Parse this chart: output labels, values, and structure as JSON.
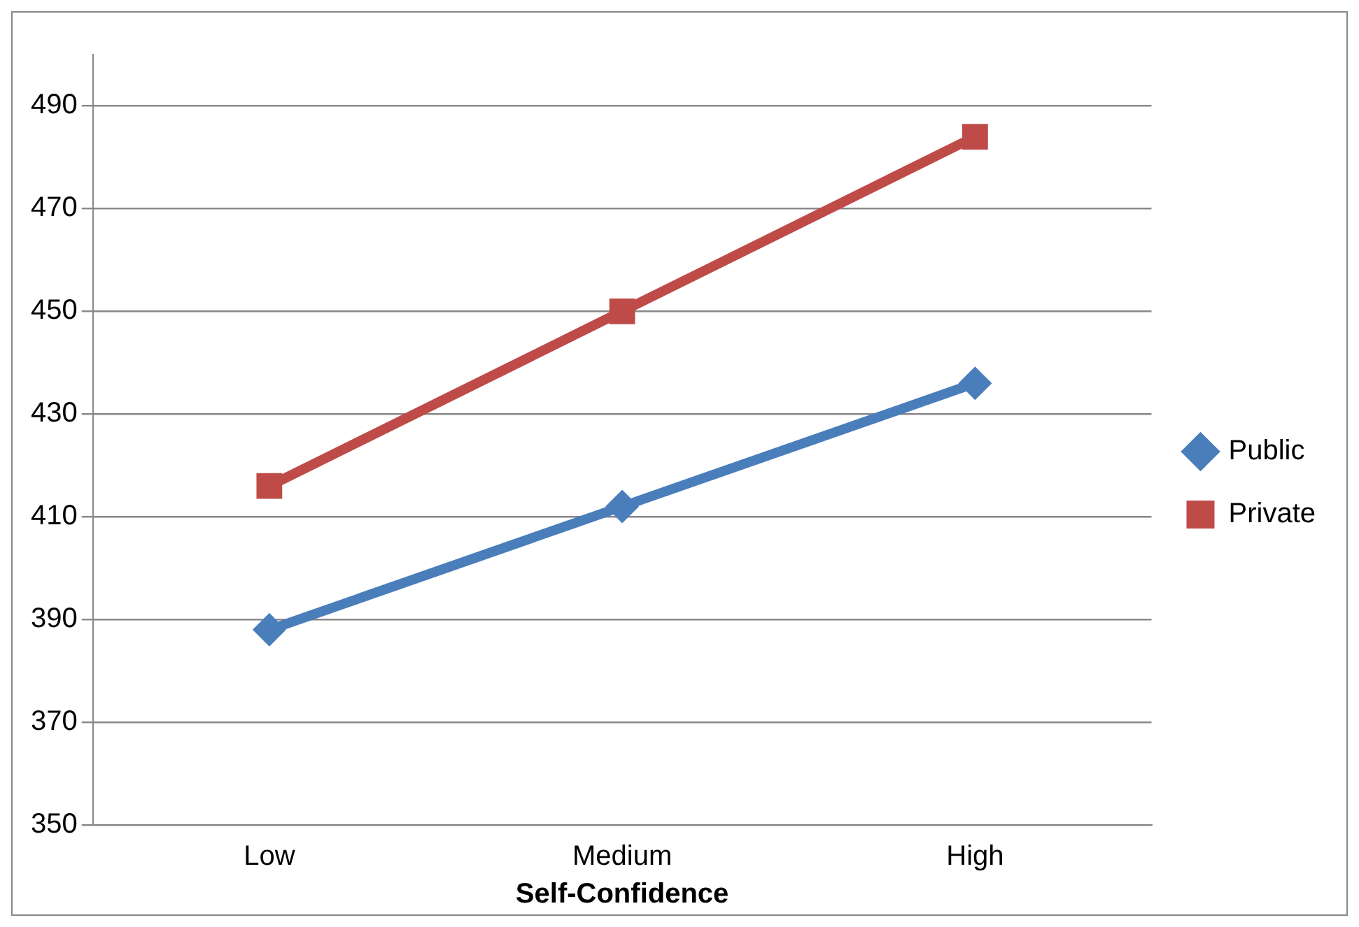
{
  "chart_data": {
    "type": "line",
    "xlabel": "Self-Confidence",
    "categories": [
      "Low",
      "Medium",
      "High"
    ],
    "series": [
      {
        "name": "Public",
        "color": "#4a7ebb",
        "values": [
          388,
          412,
          436
        ],
        "marker": "diamond"
      },
      {
        "name": "Private",
        "color": "#be4b48",
        "values": [
          416,
          450,
          484
        ],
        "marker": "square"
      }
    ],
    "ylim": [
      350,
      500
    ],
    "yticks": [
      350,
      370,
      390,
      410,
      430,
      450,
      470,
      490
    ],
    "grid": "y",
    "legend": "right",
    "line_style": "solid"
  }
}
